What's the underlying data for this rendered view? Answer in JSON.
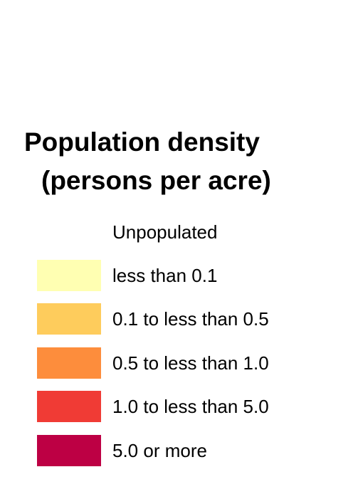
{
  "legend": {
    "title_line1": "Population density",
    "title_line2": "(persons per acre)",
    "items": [
      {
        "label": "Unpopulated",
        "color": ""
      },
      {
        "label": "less than 0.1",
        "color": "#FFFFB2"
      },
      {
        "label": "0.1 to less than 0.5",
        "color": "#FECC5C"
      },
      {
        "label": "0.5 to less than 1.0",
        "color": "#FD8D3C"
      },
      {
        "label": "1.0 to less than 5.0",
        "color": "#F03B35"
      },
      {
        "label": "5.0 or more",
        "color": "#BD0044"
      }
    ]
  }
}
